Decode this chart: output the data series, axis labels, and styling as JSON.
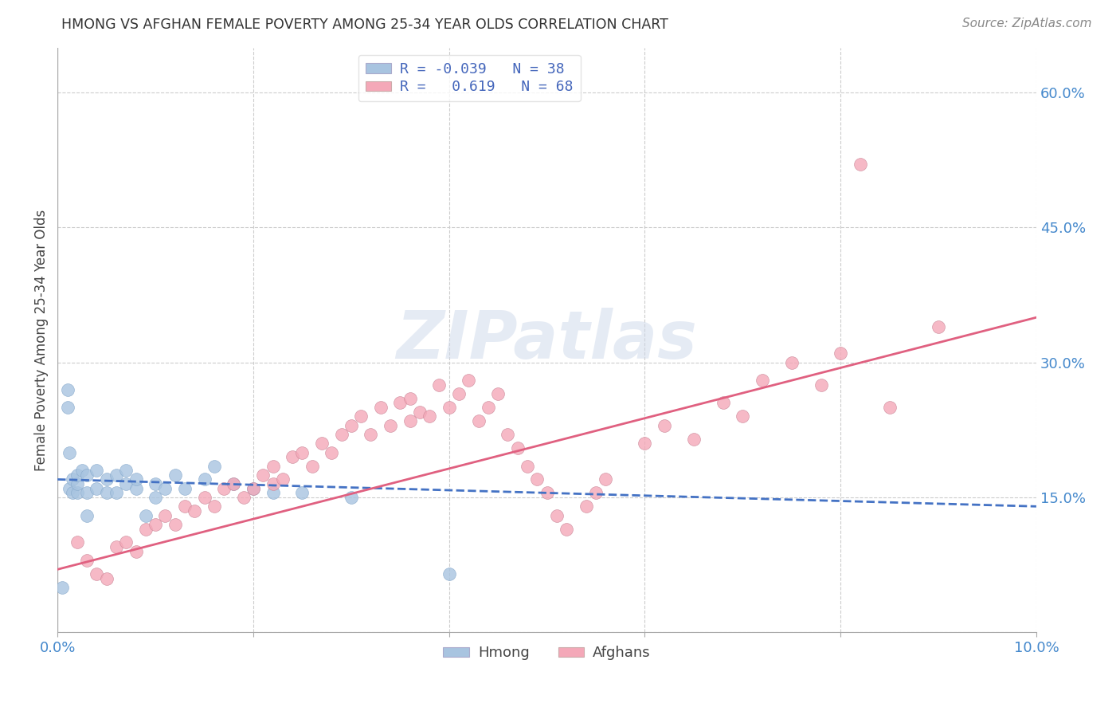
{
  "title": "HMONG VS AFGHAN FEMALE POVERTY AMONG 25-34 YEAR OLDS CORRELATION CHART",
  "source": "Source: ZipAtlas.com",
  "ylabel": "Female Poverty Among 25-34 Year Olds",
  "x_min": 0.0,
  "x_max": 0.1,
  "y_min": 0.0,
  "y_max": 0.65,
  "hmong_color": "#a8c4e0",
  "afghan_color": "#f4a8b8",
  "hmong_line_color": "#4472c4",
  "afghan_line_color": "#e06080",
  "hmong_R": -0.039,
  "hmong_N": 38,
  "afghan_R": 0.619,
  "afghan_N": 68,
  "watermark": "ZIPatlas",
  "legend_labels": [
    "Hmong",
    "Afghans"
  ],
  "hmong_x": [
    0.0005,
    0.001,
    0.001,
    0.0012,
    0.0012,
    0.0015,
    0.0015,
    0.002,
    0.002,
    0.002,
    0.0025,
    0.003,
    0.003,
    0.003,
    0.004,
    0.004,
    0.005,
    0.005,
    0.006,
    0.006,
    0.007,
    0.007,
    0.008,
    0.008,
    0.009,
    0.01,
    0.01,
    0.011,
    0.012,
    0.013,
    0.015,
    0.016,
    0.018,
    0.02,
    0.022,
    0.025,
    0.03,
    0.04
  ],
  "hmong_y": [
    0.05,
    0.27,
    0.25,
    0.16,
    0.2,
    0.155,
    0.17,
    0.155,
    0.165,
    0.175,
    0.18,
    0.13,
    0.155,
    0.175,
    0.16,
    0.18,
    0.155,
    0.17,
    0.155,
    0.175,
    0.165,
    0.18,
    0.16,
    0.17,
    0.13,
    0.15,
    0.165,
    0.16,
    0.175,
    0.16,
    0.17,
    0.185,
    0.165,
    0.16,
    0.155,
    0.155,
    0.15,
    0.065
  ],
  "afghan_x": [
    0.002,
    0.003,
    0.004,
    0.005,
    0.006,
    0.007,
    0.008,
    0.009,
    0.01,
    0.011,
    0.012,
    0.013,
    0.014,
    0.015,
    0.016,
    0.017,
    0.018,
    0.019,
    0.02,
    0.021,
    0.022,
    0.022,
    0.023,
    0.024,
    0.025,
    0.026,
    0.027,
    0.028,
    0.029,
    0.03,
    0.031,
    0.032,
    0.033,
    0.034,
    0.035,
    0.036,
    0.036,
    0.037,
    0.038,
    0.039,
    0.04,
    0.041,
    0.042,
    0.043,
    0.044,
    0.045,
    0.046,
    0.047,
    0.048,
    0.049,
    0.05,
    0.051,
    0.052,
    0.054,
    0.055,
    0.056,
    0.06,
    0.062,
    0.065,
    0.068,
    0.07,
    0.072,
    0.075,
    0.078,
    0.08,
    0.082,
    0.085,
    0.09
  ],
  "afghan_y": [
    0.1,
    0.08,
    0.065,
    0.06,
    0.095,
    0.1,
    0.09,
    0.115,
    0.12,
    0.13,
    0.12,
    0.14,
    0.135,
    0.15,
    0.14,
    0.16,
    0.165,
    0.15,
    0.16,
    0.175,
    0.185,
    0.165,
    0.17,
    0.195,
    0.2,
    0.185,
    0.21,
    0.2,
    0.22,
    0.23,
    0.24,
    0.22,
    0.25,
    0.23,
    0.255,
    0.235,
    0.26,
    0.245,
    0.24,
    0.275,
    0.25,
    0.265,
    0.28,
    0.235,
    0.25,
    0.265,
    0.22,
    0.205,
    0.185,
    0.17,
    0.155,
    0.13,
    0.115,
    0.14,
    0.155,
    0.17,
    0.21,
    0.23,
    0.215,
    0.255,
    0.24,
    0.28,
    0.3,
    0.275,
    0.31,
    0.52,
    0.25,
    0.34
  ],
  "background_color": "#ffffff",
  "grid_color": "#cccccc",
  "x_tick_positions": [
    0.0,
    0.02,
    0.04,
    0.06,
    0.08,
    0.1
  ],
  "x_tick_labels": [
    "0.0%",
    "",
    "",
    "",
    "",
    "10.0%"
  ],
  "y_tick_positions": [
    0.0,
    0.15,
    0.3,
    0.45,
    0.6
  ],
  "y_tick_labels": [
    "",
    "15.0%",
    "30.0%",
    "45.0%",
    "60.0%"
  ]
}
